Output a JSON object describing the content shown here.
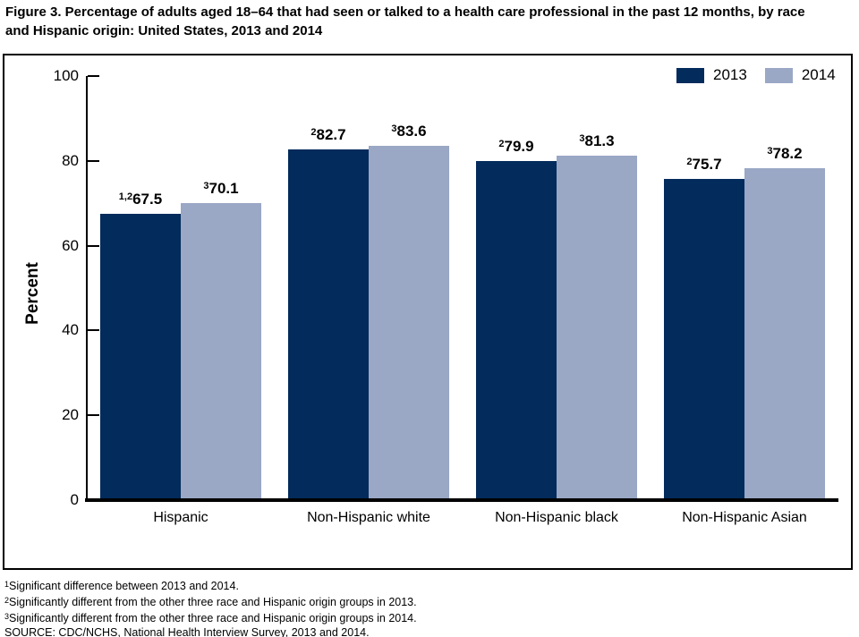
{
  "title": "Figure 3. Percentage of adults aged 18–64 that had seen or talked to a health care professional in the past 12 months, by race and Hispanic origin: United States, 2013 and 2014",
  "colors": {
    "series_2013": "#032b5c",
    "series_2014": "#9aa7c5",
    "axis": "#000000",
    "background": "#ffffff"
  },
  "legend": {
    "position": "top-right",
    "items": [
      {
        "label": "2013",
        "color": "#032b5c"
      },
      {
        "label": "2014",
        "color": "#9aa7c5"
      }
    ]
  },
  "chart_data": {
    "type": "bar",
    "title": "Figure 3. Percentage of adults aged 18–64 that had seen or talked to a health care professional in the past 12 months, by race and Hispanic origin: United States, 2013 and 2014",
    "categories": [
      "Hispanic",
      "Non-Hispanic white",
      "Non-Hispanic black",
      "Non-Hispanic Asian"
    ],
    "series": [
      {
        "name": "2013",
        "color": "#032b5c",
        "values": [
          67.5,
          82.7,
          79.9,
          75.7
        ],
        "superscripts": [
          "1,2",
          "2",
          "2",
          "2"
        ]
      },
      {
        "name": "2014",
        "color": "#9aa7c5",
        "values": [
          70.1,
          83.6,
          81.3,
          78.2
        ],
        "superscripts": [
          "3",
          "3",
          "3",
          "3"
        ]
      }
    ],
    "xlabel": "",
    "ylabel": "Percent",
    "ylim": [
      0,
      100
    ],
    "yticks": [
      0,
      20,
      40,
      60,
      80,
      100
    ],
    "grid": false,
    "legend_position": "top-right"
  },
  "footnotes": [
    {
      "sup": "1",
      "text": "Significant difference between 2013 and 2014."
    },
    {
      "sup": "2",
      "text": "Significantly different from the other three race and Hispanic origin groups in 2013."
    },
    {
      "sup": "3",
      "text": "Significantly different from the other three race and Hispanic origin groups in 2014."
    },
    {
      "sup": "",
      "text": "SOURCE: CDC/NCHS, National Health Interview Survey, 2013 and 2014."
    }
  ]
}
